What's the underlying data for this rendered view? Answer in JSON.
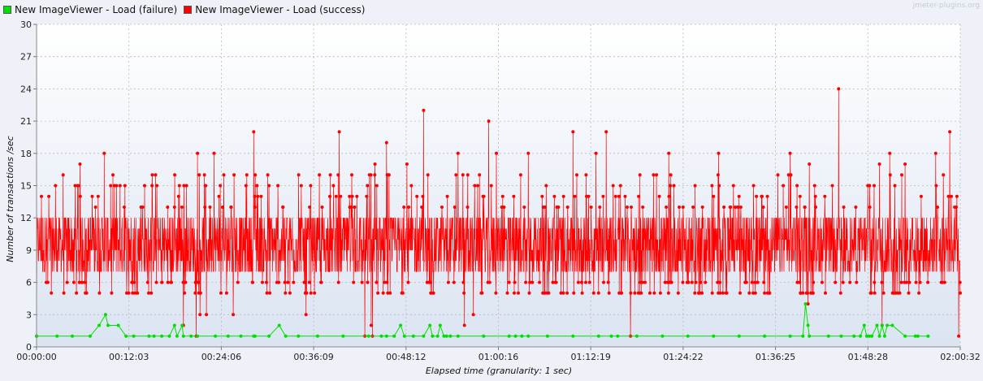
{
  "chart_data": {
    "type": "line",
    "title": "",
    "xlabel": "Elapsed time (granularity: 1 sec)",
    "ylabel": "Number of transactions /sec",
    "ylim": [
      0,
      30
    ],
    "xlim_seconds": [
      0,
      7232
    ],
    "y_ticks": [
      "0",
      "3",
      "6",
      "9",
      "12",
      "15",
      "18",
      "21",
      "24",
      "27",
      "30"
    ],
    "x_ticks": [
      "00:00:00",
      "00:12:03",
      "00:24:06",
      "00:36:09",
      "00:48:12",
      "01:00:16",
      "01:12:19",
      "01:24:22",
      "01:36:25",
      "01:48:28",
      "02:00:32"
    ],
    "grid": true,
    "legend_position": "top-left",
    "watermark": "jmeter-plugins.org",
    "series": [
      {
        "name": "New ImageViewer - Load (failure)",
        "color": "#00e000",
        "points": [
          [
            0,
            1
          ],
          [
            160,
            1
          ],
          [
            280,
            1
          ],
          [
            420,
            1
          ],
          [
            490,
            2
          ],
          [
            540,
            3
          ],
          [
            560,
            2
          ],
          [
            640,
            2
          ],
          [
            700,
            1
          ],
          [
            760,
            1
          ],
          [
            880,
            1
          ],
          [
            920,
            1
          ],
          [
            980,
            1
          ],
          [
            1040,
            1
          ],
          [
            1080,
            2
          ],
          [
            1100,
            1
          ],
          [
            1140,
            2
          ],
          [
            1150,
            1
          ],
          [
            1210,
            1
          ],
          [
            1260,
            1
          ],
          [
            1400,
            1
          ],
          [
            1500,
            1
          ],
          [
            1600,
            1
          ],
          [
            1700,
            1
          ],
          [
            1710,
            1
          ],
          [
            1820,
            1
          ],
          [
            1900,
            2
          ],
          [
            1950,
            1
          ],
          [
            2050,
            1
          ],
          [
            2200,
            1
          ],
          [
            2400,
            1
          ],
          [
            2600,
            1
          ],
          [
            2700,
            1
          ],
          [
            2740,
            1
          ],
          [
            2800,
            1
          ],
          [
            2850,
            2
          ],
          [
            2880,
            1
          ],
          [
            2950,
            1
          ],
          [
            3030,
            1
          ],
          [
            3080,
            2
          ],
          [
            3100,
            1
          ],
          [
            3140,
            1
          ],
          [
            3160,
            2
          ],
          [
            3190,
            1
          ],
          [
            3210,
            1
          ],
          [
            3240,
            1
          ],
          [
            3300,
            1
          ],
          [
            3500,
            1
          ],
          [
            3700,
            1
          ],
          [
            3750,
            1
          ],
          [
            3800,
            1
          ],
          [
            3850,
            1
          ],
          [
            4000,
            1
          ],
          [
            4200,
            1
          ],
          [
            4400,
            1
          ],
          [
            4500,
            1
          ],
          [
            4550,
            1
          ],
          [
            4700,
            1
          ],
          [
            4900,
            1
          ],
          [
            5100,
            1
          ],
          [
            5300,
            1
          ],
          [
            5500,
            1
          ],
          [
            5700,
            1
          ],
          [
            5900,
            1
          ],
          [
            6000,
            1
          ],
          [
            6020,
            4
          ],
          [
            6040,
            2
          ],
          [
            6050,
            1
          ],
          [
            6200,
            1
          ],
          [
            6300,
            1
          ],
          [
            6400,
            1
          ],
          [
            6450,
            1
          ],
          [
            6480,
            2
          ],
          [
            6500,
            1
          ],
          [
            6520,
            1
          ],
          [
            6540,
            1
          ],
          [
            6580,
            2
          ],
          [
            6600,
            1
          ],
          [
            6620,
            2
          ],
          [
            6640,
            1
          ],
          [
            6660,
            2
          ],
          [
            6700,
            2
          ],
          [
            6800,
            1
          ],
          [
            6880,
            1
          ],
          [
            6900,
            1
          ],
          [
            6980,
            1
          ]
        ]
      },
      {
        "name": "New ImageViewer - Load (success)",
        "color": "#ff0000",
        "points": []
      }
    ]
  }
}
